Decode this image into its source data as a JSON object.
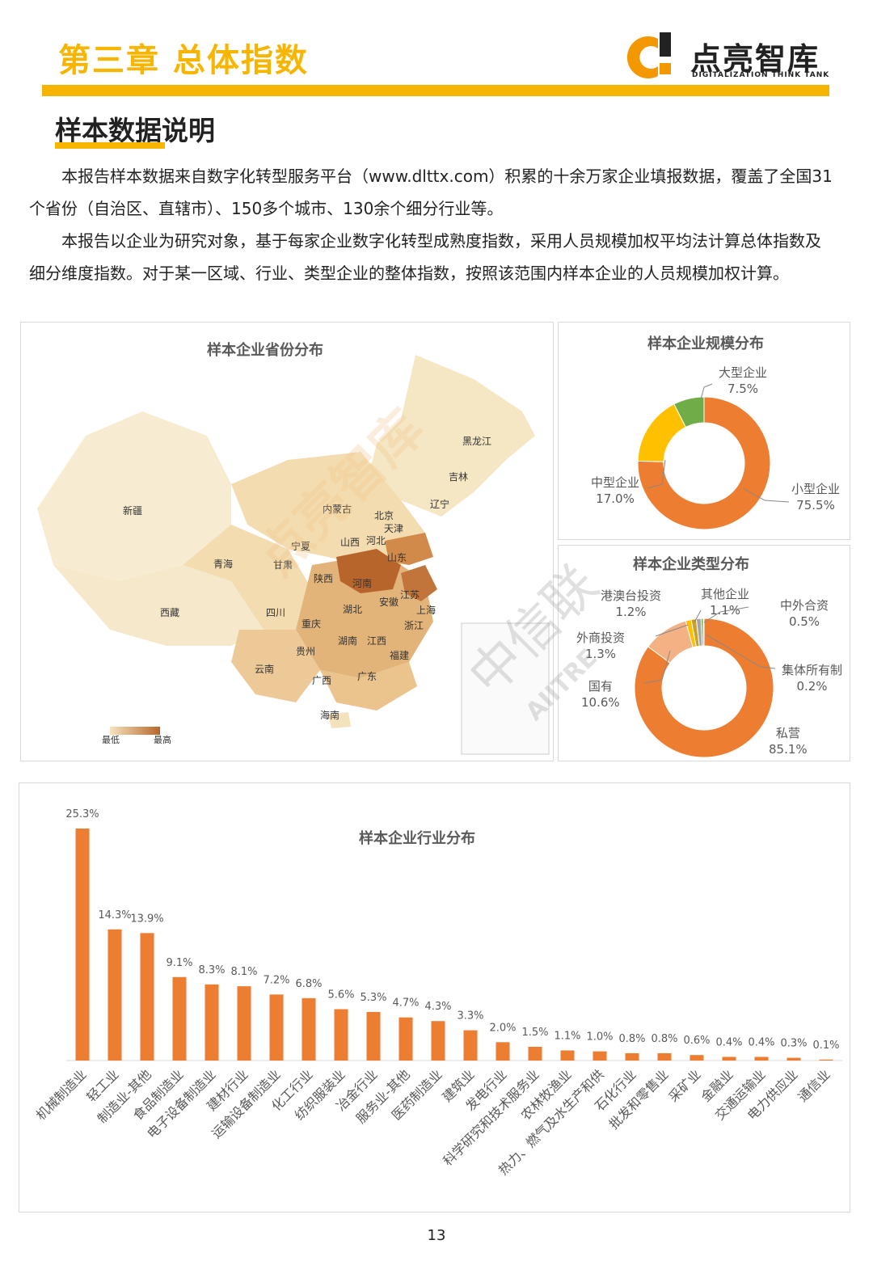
{
  "header": {
    "chapter_title": "第三章   总体指数",
    "logo_name": "点亮智库",
    "logo_subtitle": "DIGITALIZATION THINK TANK"
  },
  "section": {
    "title": "样本数据说明",
    "paragraphs": [
      "本报告样本数据来自数字化转型服务平台（www.dlttx.com）积累的十余万家企业填报数据，覆盖了全国31个省份（自治区、直辖市）、150多个城市、130余个细分行业等。",
      "本报告以企业为研究对象，基于每家企业数字化转型成熟度指数，采用人员规模加权平均法计算总体指数及细分维度指数。对于某一区域、行业、类型企业的整体指数，按照该范围内样本企业的人员规模加权计算。"
    ]
  },
  "map_panel": {
    "title": "样本企业省份分布",
    "legend_low": "最低",
    "legend_high": "最高",
    "regions": [
      "黑龙江",
      "吉林",
      "辽宁",
      "内蒙古",
      "北京",
      "天津",
      "新疆",
      "宁夏",
      "山西",
      "河北",
      "山东",
      "青海",
      "甘肃",
      "陕西",
      "河南",
      "安徽",
      "江苏",
      "上海",
      "西藏",
      "四川",
      "湖北",
      "重庆",
      "浙江",
      "江西",
      "湖南",
      "贵州",
      "福建",
      "云南",
      "广西",
      "广东",
      "海南"
    ]
  },
  "watermarks": [
    "点亮智库",
    "中信联",
    "AIITRE"
  ],
  "colors": {
    "accent_yellow": "#f7b500",
    "bar_orange": "#ed7d31",
    "donut_orange": "#ed7d31",
    "donut_yellow": "#ffc000",
    "donut_green": "#70ad47",
    "donut_light_orange": "#f4b183",
    "donut_brown": "#c55a11",
    "donut_gray": "#a5a5a5"
  },
  "chart_data": [
    {
      "type": "pie",
      "subtype": "donut",
      "title": "样本企业规模分布",
      "categories": [
        "小型企业",
        "中型企业",
        "大型企业"
      ],
      "values": [
        75.5,
        17.0,
        7.5
      ],
      "value_labels": [
        "75.5%",
        "17.0%",
        "7.5%"
      ],
      "colors": [
        "#ed7d31",
        "#ffc000",
        "#70ad47"
      ]
    },
    {
      "type": "pie",
      "subtype": "donut",
      "title": "样本企业类型分布",
      "categories": [
        "私营",
        "国有",
        "外商投资",
        "港澳台投资",
        "其他企业",
        "中外合资",
        "集体所有制"
      ],
      "values": [
        85.1,
        10.6,
        1.3,
        1.2,
        1.1,
        0.5,
        0.2
      ],
      "value_labels": [
        "85.1%",
        "10.6%",
        "1.3%",
        "1.2%",
        "1.1%",
        "0.5%",
        "0.2%"
      ],
      "colors": [
        "#ed7d31",
        "#f4b183",
        "#ffc000",
        "#c9a227",
        "#a5a5a5",
        "#70ad47",
        "#c55a11"
      ]
    },
    {
      "type": "bar",
      "title": "样本企业行业分布",
      "categories": [
        "机械制造业",
        "轻工业",
        "制造业-其他",
        "食品制造业",
        "电子设备制造业",
        "建材行业",
        "运输设备制造业",
        "化工行业",
        "纺织服装业",
        "冶金行业",
        "服务业-其他",
        "医药制造业",
        "建筑业",
        "发电行业",
        "科学研究和技术服务业",
        "农林牧渔业",
        "热力、燃气及水生产和供",
        "石化行业",
        "批发和零售业",
        "采矿业",
        "金融业",
        "交通运输业",
        "电力供应业",
        "通信业"
      ],
      "values": [
        25.3,
        14.3,
        13.9,
        9.1,
        8.3,
        8.1,
        7.2,
        6.8,
        5.6,
        5.3,
        4.7,
        4.3,
        3.3,
        2.0,
        1.5,
        1.1,
        1.0,
        0.8,
        0.8,
        0.6,
        0.4,
        0.4,
        0.3,
        0.1
      ],
      "value_labels": [
        "25.3%",
        "14.3%",
        "13.9%",
        "9.1%",
        "8.3%",
        "8.1%",
        "7.2%",
        "6.8%",
        "5.6%",
        "5.3%",
        "4.7%",
        "4.3%",
        "3.3%",
        "2.0%",
        "1.5%",
        "1.1%",
        "1.0%",
        "0.8%",
        "0.8%",
        "0.6%",
        "0.4%",
        "0.4%",
        "0.3%",
        "0.1%"
      ],
      "ylim": [
        0,
        25.3
      ],
      "grid": false,
      "legend": "none"
    }
  ],
  "page": {
    "number": "13"
  }
}
